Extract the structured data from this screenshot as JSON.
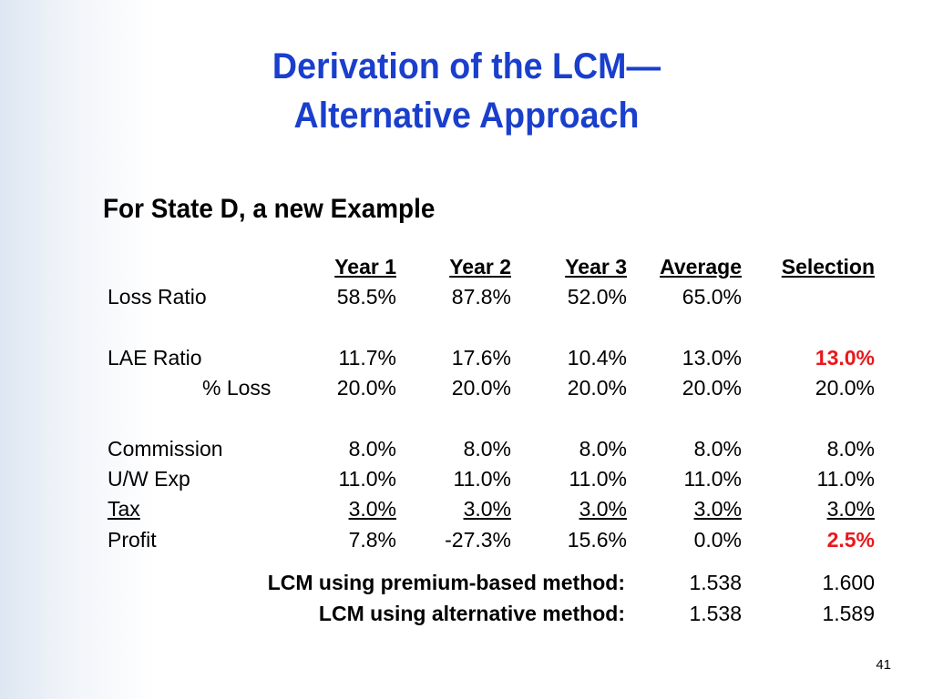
{
  "title": {
    "line1": "Derivation of the LCM—",
    "line2": "Alternative Approach"
  },
  "subtitle": "For State D, a new Example",
  "table": {
    "headers": [
      "Year 1",
      "Year 2",
      "Year 3",
      "Average",
      "Selection"
    ],
    "rows": {
      "loss_ratio": {
        "label": "Loss Ratio",
        "values": [
          "58.5%",
          "87.8%",
          "52.0%",
          "65.0%",
          ""
        ]
      },
      "lae_ratio": {
        "label": "LAE Ratio",
        "values": [
          "11.7%",
          "17.6%",
          "10.4%",
          "13.0%",
          "13.0%"
        ]
      },
      "pct_loss": {
        "label": "% Loss",
        "values": [
          "20.0%",
          "20.0%",
          "20.0%",
          "20.0%",
          "20.0%"
        ]
      },
      "commission": {
        "label": "Commission",
        "values": [
          "8.0%",
          "8.0%",
          "8.0%",
          "8.0%",
          "8.0%"
        ]
      },
      "uw_exp": {
        "label": "U/W Exp",
        "values": [
          "11.0%",
          "11.0%",
          "11.0%",
          "11.0%",
          "11.0%"
        ]
      },
      "tax": {
        "label": "Tax",
        "values": [
          "3.0%",
          "3.0%",
          "3.0%",
          "3.0%",
          "3.0%"
        ]
      },
      "profit": {
        "label": "Profit",
        "values": [
          "7.8%",
          "-27.3%",
          "15.6%",
          "0.0%",
          "2.5%"
        ]
      }
    }
  },
  "lcm": {
    "premium_based": {
      "label": "LCM using premium-based method:",
      "average": "1.538",
      "selection": "1.600"
    },
    "alternative": {
      "label": "LCM using alternative method:",
      "average": "1.538",
      "selection": "1.589"
    }
  },
  "page_number": "41",
  "colors": {
    "title": "#1a3fcc",
    "highlight": "#e8181c"
  }
}
